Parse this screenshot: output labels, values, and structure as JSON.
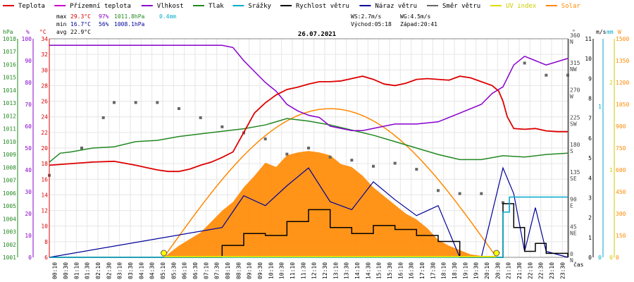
{
  "chart_data": {
    "type": "line",
    "title": "26.07.2021",
    "legend": [
      {
        "name": "Teplota",
        "color": "#dd0000"
      },
      {
        "name": "Přízemní teplota",
        "color": "#cc00cc"
      },
      {
        "name": "Vlhkost",
        "color": "#8800cc"
      },
      {
        "name": "Tlak",
        "color": "#228822"
      },
      {
        "name": "Srážky",
        "color": "#00aacc"
      },
      {
        "name": "Rychlost větru",
        "color": "#000000"
      },
      {
        "name": "Náraz větru",
        "color": "#000099"
      },
      {
        "name": "Směr větru",
        "color": "#666666"
      },
      {
        "name": "UV index",
        "color": "#dddd00"
      },
      {
        "name": "Solar",
        "color": "#ff8800"
      }
    ],
    "stats": {
      "max_label": "max",
      "max_temp": "29.3°C",
      "max_hum": "97%",
      "max_press": "1011.8hPa",
      "max_rain": "0.4mm",
      "min_label": "min",
      "min_temp": "16.7°C",
      "min_hum": "56%",
      "min_press": "1008.1hPa",
      "avg_label": "avg",
      "avg_temp": "22.9°C",
      "ws": "WS:2.7m/s",
      "wg": "WG:4.5m/s",
      "sunrise": "Východ:05:18",
      "sunset": "Západ:20:41"
    },
    "axes": {
      "hpa_unit": "hPa",
      "hum_unit": "%",
      "temp_unit": "°C",
      "dir_unit": "°",
      "ms_unit": "m/s",
      "mm_unit": "mm",
      "w_unit": "W",
      "x_unit": "čas",
      "hpa_ticks": [
        1001,
        1002,
        1003,
        1004,
        1005,
        1006,
        1007,
        1008,
        1009,
        1010,
        1011,
        1012,
        1013,
        1014,
        1015,
        1016,
        1017,
        1018
      ],
      "hum_ticks": [
        0,
        10,
        20,
        30,
        40,
        50,
        60,
        70,
        80,
        90,
        100
      ],
      "temp_ticks": [
        6,
        8,
        10,
        12,
        14,
        16,
        18,
        20,
        22,
        24,
        26,
        28,
        30,
        32,
        34
      ],
      "dir_ticks": [
        {
          "deg": "0",
          "dir": "N"
        },
        {
          "deg": "45",
          "dir": "NE"
        },
        {
          "deg": "90",
          "dir": "E"
        },
        {
          "deg": "135",
          "dir": "SE"
        },
        {
          "deg": "180",
          "dir": "S"
        },
        {
          "deg": "225",
          "dir": "SW"
        },
        {
          "deg": "270",
          "dir": "W"
        },
        {
          "deg": "315",
          "dir": "NW"
        },
        {
          "deg": "360",
          "dir": "N"
        }
      ],
      "ms_ticks": [
        0,
        1,
        2,
        3,
        4,
        5,
        6,
        7,
        8,
        9,
        10,
        11
      ],
      "mm_ticks": [
        0,
        1
      ],
      "uv_ticks": [
        0,
        1,
        2
      ],
      "w_ticks": [
        0,
        150,
        300,
        450,
        600,
        750,
        900,
        1050,
        1200,
        1350,
        1500
      ],
      "x_ticks": [
        "00:10",
        "00:30",
        "01:10",
        "01:30",
        "02:10",
        "02:30",
        "03:10",
        "03:30",
        "04:10",
        "04:30",
        "05:10",
        "05:30",
        "06:10",
        "06:30",
        "07:10",
        "07:30",
        "08:10",
        "08:30",
        "09:10",
        "09:30",
        "10:10",
        "10:30",
        "11:10",
        "11:30",
        "12:10",
        "12:30",
        "13:10",
        "13:30",
        "14:10",
        "14:30",
        "15:10",
        "15:30",
        "16:10",
        "16:30",
        "17:10",
        "17:30",
        "18:10",
        "18:30",
        "19:10",
        "19:30",
        "20:10",
        "20:30",
        "21:10",
        "21:30",
        "22:10",
        "22:30",
        "23:10",
        "23:30"
      ]
    },
    "series": [
      {
        "name": "Teplota",
        "unit": "°C",
        "x": [
          0,
          1,
          2,
          3,
          4,
          4.5,
          5,
          5.5,
          6,
          6.5,
          7,
          7.5,
          8,
          8.5,
          9,
          9.5,
          10,
          10.5,
          11,
          11.5,
          12,
          12.5,
          13,
          13.5,
          14,
          14.5,
          15,
          15.5,
          16,
          16.5,
          17,
          17.5,
          18,
          18.5,
          19,
          19.5,
          20,
          20.5,
          20.8,
          21,
          21.2,
          21.5,
          22,
          22.5,
          23,
          23.5,
          24
        ],
        "y": [
          17.8,
          18,
          18.2,
          18.3,
          17.8,
          17.5,
          17.2,
          17,
          17,
          17.3,
          17.8,
          18.2,
          18.8,
          19.5,
          22,
          24.5,
          25.8,
          26.8,
          27.5,
          27.8,
          28.2,
          28.5,
          28.5,
          28.6,
          28.9,
          29.2,
          28.8,
          28.2,
          28,
          28.3,
          28.8,
          28.9,
          28.8,
          28.7,
          29.2,
          29,
          28.5,
          28,
          27.3,
          26,
          24,
          22.5,
          22.4,
          22.5,
          22.2,
          22.1,
          22.1
        ]
      },
      {
        "name": "Vlhkost",
        "unit": "%",
        "x": [
          0,
          1,
          2,
          3,
          4,
          5,
          6,
          7,
          8,
          8.5,
          9,
          9.5,
          10,
          10.5,
          11,
          11.5,
          12,
          12.5,
          13,
          13.5,
          14,
          14.5,
          15,
          15.5,
          16,
          17,
          18,
          19,
          20,
          20.5,
          21,
          21.5,
          22,
          22.5,
          23,
          24
        ],
        "y": [
          97,
          97,
          97,
          97,
          97,
          97,
          97,
          97,
          97,
          96,
          90,
          85,
          80,
          76,
          70,
          67,
          65,
          64,
          60,
          59,
          58,
          58,
          59,
          60,
          61,
          61,
          62,
          66,
          70,
          75,
          78,
          88,
          92,
          90,
          88,
          91
        ]
      },
      {
        "name": "Tlak",
        "unit": "hPa",
        "x": [
          0,
          0.5,
          1,
          2,
          3,
          4,
          5,
          6,
          7,
          8,
          9,
          10,
          11,
          12,
          13,
          14,
          15,
          16,
          17,
          18,
          19,
          20,
          21,
          22,
          23,
          24
        ],
        "y": [
          1008.4,
          1009.1,
          1009.2,
          1009.5,
          1009.6,
          1010,
          1010.1,
          1010.4,
          1010.6,
          1010.8,
          1011,
          1011.3,
          1011.8,
          1011.6,
          1011.3,
          1010.9,
          1010.5,
          1010,
          1009.5,
          1009,
          1008.6,
          1008.6,
          1008.9,
          1008.8,
          1009,
          1009.1
        ]
      },
      {
        "name": "Srážky",
        "unit": "mm",
        "x": [
          0,
          20.9,
          21,
          21.3,
          24
        ],
        "y": [
          0,
          0,
          0.3,
          0.4,
          0.4
        ]
      },
      {
        "name": "Solar",
        "unit": "W",
        "x": [
          5.3,
          6,
          7,
          8,
          8.5,
          9,
          9.5,
          10,
          10.5,
          11,
          11.5,
          12,
          12.5,
          13,
          13.5,
          14,
          14.5,
          15,
          15.5,
          16,
          16.5,
          17,
          17.5,
          18,
          18.5,
          19,
          19.5,
          20,
          20.5
        ],
        "y": [
          0,
          80,
          170,
          320,
          380,
          480,
          560,
          650,
          620,
          700,
          720,
          730,
          720,
          700,
          640,
          620,
          560,
          480,
          420,
          360,
          300,
          260,
          200,
          120,
          80,
          50,
          20,
          10,
          0
        ]
      },
      {
        "name": "Rychlost větru",
        "unit": "m/s",
        "x": [
          0,
          8,
          9,
          10,
          11,
          12,
          13,
          14,
          15,
          16,
          17,
          18,
          19,
          20,
          21,
          21.5,
          22,
          22.5,
          23,
          24
        ],
        "y": [
          0,
          0.6,
          1.2,
          1.1,
          1.8,
          2.4,
          1.5,
          1.2,
          1.6,
          1.4,
          1.1,
          0.8,
          0,
          0,
          2.7,
          1.5,
          0.3,
          0.7,
          0.2,
          0
        ]
      },
      {
        "name": "Náraz větru",
        "unit": "m/s",
        "x": [
          0,
          8,
          9,
          10,
          11,
          12,
          13,
          14,
          15,
          16,
          17,
          18,
          19,
          20,
          21,
          21.5,
          22,
          22.5,
          23,
          24
        ],
        "y": [
          0,
          1.5,
          3.1,
          2.6,
          3.6,
          4.5,
          2.8,
          2.4,
          3.8,
          2.9,
          2.1,
          2.6,
          0,
          0,
          4.5,
          3.2,
          0.3,
          2.5,
          0.3,
          0
        ]
      },
      {
        "name": "Směr větru",
        "unit": "°",
        "x": [
          0,
          1.5,
          2.5,
          3,
          4,
          5,
          6,
          7,
          8,
          9,
          10,
          11,
          12,
          13,
          14,
          15,
          16,
          17,
          18,
          19,
          20,
          21,
          22,
          23,
          24
        ],
        "y": [
          135,
          180,
          230,
          255,
          255,
          255,
          245,
          230,
          215,
          205,
          195,
          170,
          180,
          165,
          160,
          150,
          155,
          145,
          110,
          105,
          105,
          90,
          320,
          300,
          300
        ]
      },
      {
        "name": "UV index",
        "unit": "",
        "x": [
          5.3,
          20.7
        ],
        "y": [
          0,
          0
        ]
      }
    ]
  }
}
